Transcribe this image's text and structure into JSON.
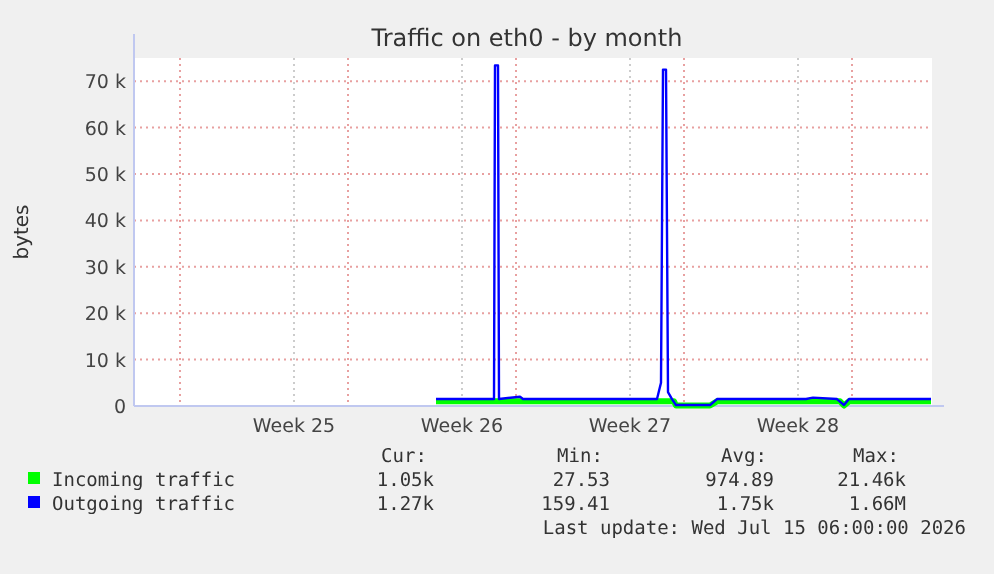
{
  "chart_data": {
    "type": "line",
    "title": "Traffic on eth0 - by month",
    "ylabel": "bytes",
    "xlim": [
      "2026-06-13T02:00",
      "2026-07-16T08:00"
    ],
    "xticks": [
      {
        "value": "2026-06-15T00:00",
        "label": null
      },
      {
        "value": "2026-06-19T18:00",
        "label": "Week 25"
      },
      {
        "value": "2026-06-22T00:00",
        "label": null
      },
      {
        "value": "2026-06-26T18:00",
        "label": "Week 26"
      },
      {
        "value": "2026-06-29T00:00",
        "label": null
      },
      {
        "value": "2026-07-03T18:00",
        "label": "Week 27"
      },
      {
        "value": "2026-07-06T00:00",
        "label": null
      },
      {
        "value": "2026-07-10T18:00",
        "label": "Week 28"
      },
      {
        "value": "2026-07-13T00:00",
        "label": null
      }
    ],
    "ylim": [
      0,
      75000
    ],
    "yticks": [
      0,
      {
        "value": 10000,
        "label": "10 k"
      },
      {
        "value": 20000,
        "label": "20 k"
      },
      {
        "value": 30000,
        "label": "30 k"
      },
      {
        "value": 40000,
        "label": "40 k"
      },
      {
        "value": 50000,
        "label": "50 k"
      },
      {
        "value": 60000,
        "label": "60 k"
      },
      {
        "value": 70000,
        "label": "70 k"
      }
    ],
    "grid": true,
    "legend": "bottom",
    "series": [
      {
        "name": "Incoming traffic",
        "color": "#00ff00",
        "x": [
          "2026-06-25T16:00",
          "2026-06-28T02:00",
          "2026-06-28T04:00",
          "2026-06-28T07:00",
          "2026-07-05T02:00",
          "2026-07-05T04:00",
          "2026-07-05T07:00",
          "2026-07-05T14:00",
          "2026-07-05T16:00",
          "2026-07-07T02:00",
          "2026-07-07T09:00",
          "2026-07-12T12:00",
          "2026-07-12T16:00",
          "2026-07-12T21:00",
          "2026-07-16T07:00"
        ],
        "values": [
          1000,
          1000,
          1000,
          1000,
          1000,
          1000,
          1000,
          1000,
          100,
          100,
          1000,
          1000,
          100,
          1000,
          1000
        ]
      },
      {
        "name": "Outgoing traffic",
        "color": "#0000ff",
        "x": [
          "2026-06-25T16:00",
          "2026-06-28T02:00",
          "2026-06-28T03:00",
          "2026-06-28T06:00",
          "2026-06-28T07:00",
          "2026-06-29T04:00",
          "2026-06-29T07:00",
          "2026-07-04T21:00",
          "2026-07-05T01:00",
          "2026-07-05T03:00",
          "2026-07-05T06:00",
          "2026-07-05T08:00",
          "2026-07-05T12:00",
          "2026-07-05T16:00",
          "2026-07-07T02:00",
          "2026-07-07T09:00",
          "2026-07-11T02:00",
          "2026-07-11T09:00",
          "2026-07-12T09:00",
          "2026-07-12T16:00",
          "2026-07-12T21:00",
          "2026-07-16T07:00"
        ],
        "values": [
          1500,
          1500,
          73400,
          73400,
          1500,
          2000,
          1500,
          1500,
          5000,
          72500,
          72500,
          3000,
          1500,
          200,
          200,
          1500,
          1500,
          1800,
          1500,
          200,
          1500,
          1500
        ]
      }
    ],
    "annotations": [
      "Cur:",
      "Min:",
      "Avg:",
      "Max:",
      "1.05k",
      "27.53",
      "974.89",
      "21.46k",
      "1.27k",
      "159.41",
      "1.75k",
      "1.66M",
      "Last update: Wed Jul 15 06:00:00 2026"
    ]
  }
}
